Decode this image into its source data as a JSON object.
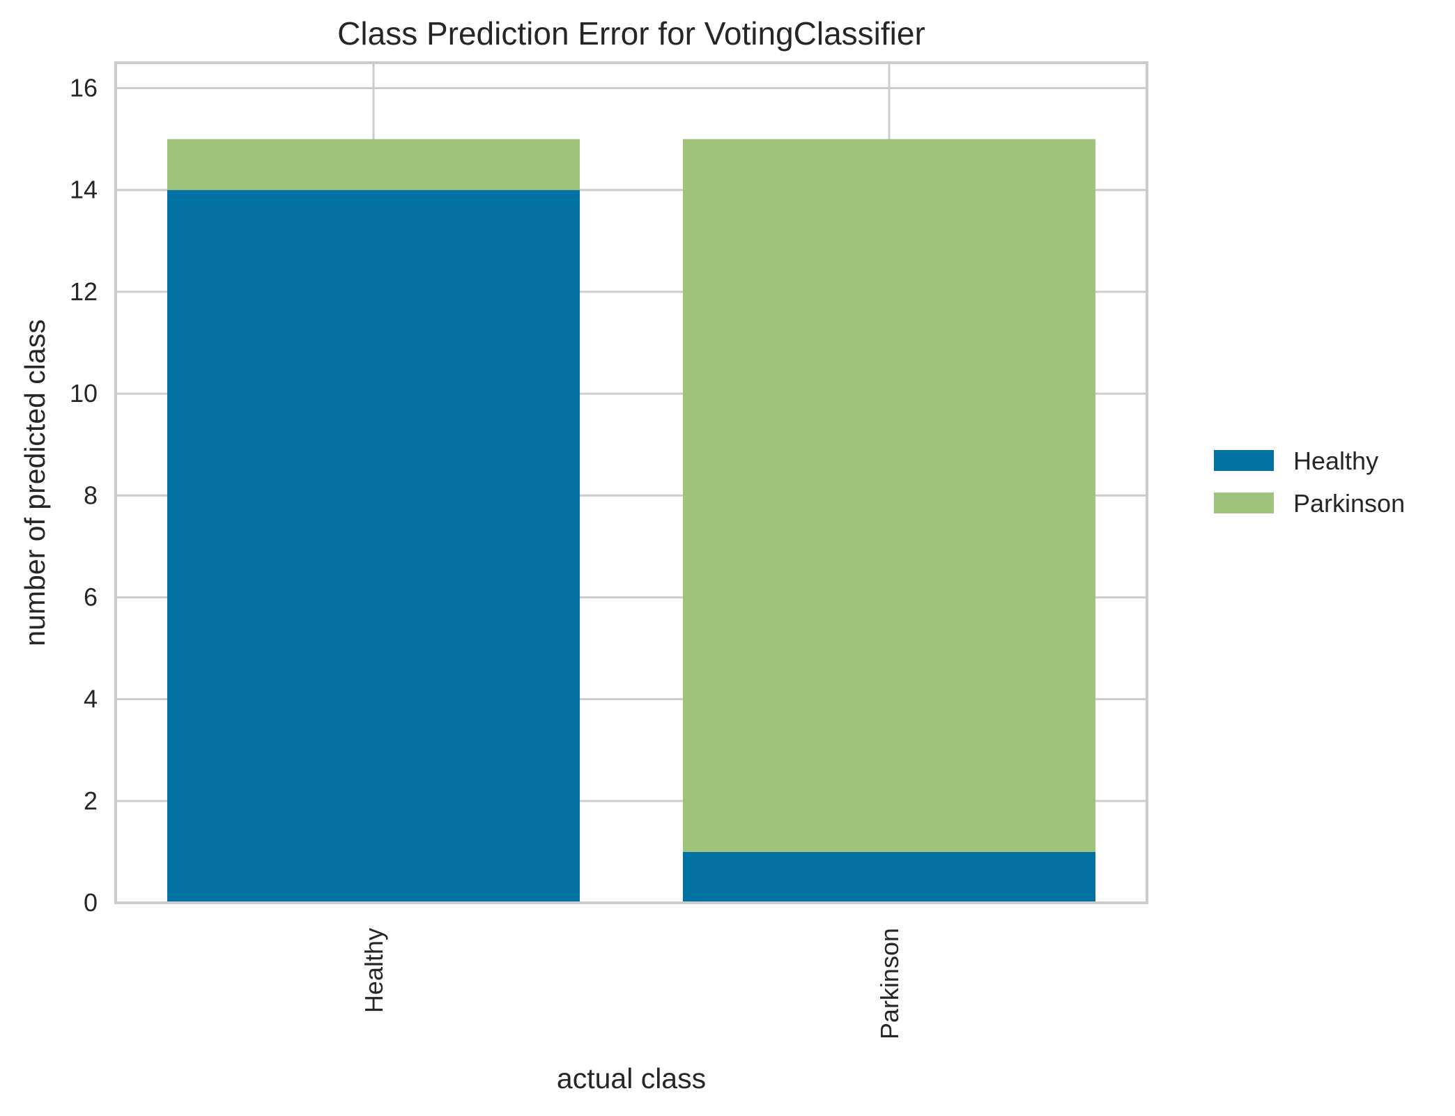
{
  "chart_data": {
    "type": "bar",
    "stacked": true,
    "title": "Class Prediction Error for VotingClassifier",
    "xlabel": "actual class",
    "ylabel": "number of predicted class",
    "categories": [
      "Healthy",
      "Parkinson"
    ],
    "series": [
      {
        "name": "Healthy",
        "values": [
          14,
          1
        ],
        "color": "#0272a2"
      },
      {
        "name": "Parkinson",
        "values": [
          1,
          14
        ],
        "color": "#9fc37b"
      }
    ],
    "ylim": [
      0,
      16.5
    ],
    "yticks": [
      0,
      2,
      4,
      6,
      8,
      10,
      12,
      14,
      16
    ],
    "grid": true,
    "legend_position": "right"
  }
}
